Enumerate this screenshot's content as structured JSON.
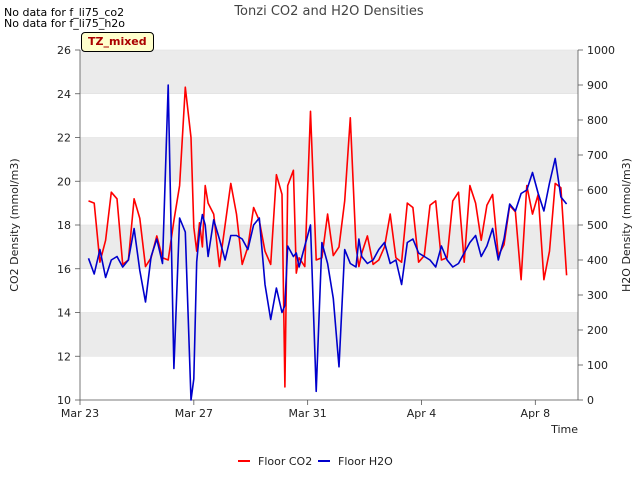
{
  "notes": [
    "No data for f_li75_co2",
    "No data for f_li75_h2o"
  ],
  "badge": "TZ_mixed",
  "chart_data": {
    "type": "line",
    "title": "Tonzi CO2 and H2O Densities",
    "xlabel": "Time",
    "ylabel": "CO2 Density (mmol/m3)",
    "y2label": "H2O Density (mmol/m3)",
    "x_range_days": [
      0,
      17.5
    ],
    "ylim": [
      10,
      26
    ],
    "y2lim": [
      0,
      1000
    ],
    "x_ticks": [
      {
        "day": 0,
        "label": "Mar 23"
      },
      {
        "day": 4,
        "label": "Mar 27"
      },
      {
        "day": 8,
        "label": "Mar 31"
      },
      {
        "day": 12,
        "label": "Apr 4"
      },
      {
        "day": 16,
        "label": "Apr 8"
      }
    ],
    "y_ticks": [
      10,
      12,
      14,
      16,
      18,
      20,
      22,
      24,
      26
    ],
    "y2_ticks": [
      0,
      100,
      200,
      300,
      400,
      500,
      600,
      700,
      800,
      900,
      1000
    ],
    "colors": {
      "co2": "#ff0000",
      "h2o": "#0000cc",
      "band": "#ebebeb",
      "grid": "#dddddd",
      "axis": "#555555"
    },
    "series": [
      {
        "name": "Floor CO2",
        "axis": "left",
        "x": [
          0.3,
          0.5,
          0.7,
          0.9,
          1.1,
          1.3,
          1.5,
          1.7,
          1.9,
          2.1,
          2.3,
          2.5,
          2.7,
          2.9,
          3.1,
          3.3,
          3.5,
          3.7,
          3.9,
          4.0,
          4.1,
          4.2,
          4.3,
          4.4,
          4.5,
          4.7,
          4.9,
          5.1,
          5.3,
          5.5,
          5.7,
          5.9,
          6.1,
          6.3,
          6.5,
          6.7,
          6.9,
          7.1,
          7.2,
          7.3,
          7.5,
          7.6,
          7.7,
          7.9,
          8.1,
          8.3,
          8.5,
          8.7,
          8.9,
          9.1,
          9.3,
          9.5,
          9.7,
          9.8,
          9.9,
          10.1,
          10.3,
          10.5,
          10.7,
          10.9,
          11.1,
          11.3,
          11.5,
          11.7,
          11.9,
          12.1,
          12.3,
          12.5,
          12.7,
          12.9,
          13.1,
          13.3,
          13.5,
          13.7,
          13.9,
          14.1,
          14.3,
          14.5,
          14.7,
          14.9,
          15.1,
          15.3,
          15.5,
          15.7,
          15.9,
          16.1,
          16.3,
          16.5,
          16.7,
          16.9,
          17.1
        ],
        "values": [
          19.1,
          19.0,
          16.3,
          17.3,
          19.5,
          19.2,
          16.2,
          16.4,
          19.2,
          18.3,
          16.1,
          16.5,
          17.5,
          16.5,
          16.4,
          18.2,
          19.8,
          24.3,
          22.0,
          17.9,
          16.8,
          18.1,
          17.0,
          19.8,
          19.0,
          18.5,
          16.1,
          18.0,
          19.9,
          18.5,
          16.2,
          17.0,
          18.8,
          18.2,
          16.8,
          16.2,
          20.3,
          19.4,
          10.6,
          19.8,
          20.5,
          15.8,
          16.5,
          16.1,
          23.2,
          16.4,
          16.5,
          18.5,
          16.6,
          17.0,
          19.1,
          22.9,
          17.0,
          16.1,
          16.7,
          17.5,
          16.2,
          16.4,
          17.0,
          18.5,
          16.5,
          16.3,
          19.0,
          18.8,
          16.3,
          16.6,
          18.9,
          19.1,
          16.4,
          16.5,
          19.1,
          19.5,
          16.3,
          19.8,
          19.0,
          17.3,
          18.9,
          19.4,
          16.6,
          17.1,
          18.9,
          18.6,
          15.5,
          19.8,
          18.5,
          19.4,
          15.5,
          16.8,
          19.9,
          19.7,
          15.7
        ]
      },
      {
        "name": "Floor H2O",
        "axis": "right",
        "x": [
          0.3,
          0.5,
          0.7,
          0.9,
          1.1,
          1.3,
          1.5,
          1.7,
          1.9,
          2.1,
          2.3,
          2.5,
          2.7,
          2.9,
          3.1,
          3.3,
          3.5,
          3.7,
          3.9,
          4.0,
          4.1,
          4.2,
          4.3,
          4.4,
          4.5,
          4.7,
          4.9,
          5.1,
          5.3,
          5.5,
          5.7,
          5.9,
          6.1,
          6.3,
          6.5,
          6.7,
          6.9,
          7.1,
          7.2,
          7.3,
          7.5,
          7.6,
          7.7,
          7.9,
          8.1,
          8.3,
          8.5,
          8.7,
          8.9,
          9.1,
          9.3,
          9.5,
          9.7,
          9.8,
          9.9,
          10.1,
          10.3,
          10.5,
          10.7,
          10.9,
          11.1,
          11.3,
          11.5,
          11.7,
          11.9,
          12.1,
          12.3,
          12.5,
          12.7,
          12.9,
          13.1,
          13.3,
          13.5,
          13.7,
          13.9,
          14.1,
          14.3,
          14.5,
          14.7,
          14.9,
          15.1,
          15.3,
          15.5,
          15.7,
          15.9,
          16.1,
          16.3,
          16.5,
          16.7,
          16.9,
          17.1
        ],
        "values": [
          405,
          360,
          430,
          350,
          400,
          410,
          380,
          400,
          490,
          370,
          280,
          410,
          460,
          390,
          900,
          90,
          520,
          480,
          0,
          60,
          395,
          480,
          530,
          500,
          410,
          515,
          460,
          400,
          470,
          470,
          460,
          430,
          500,
          520,
          330,
          230,
          320,
          250,
          270,
          440,
          410,
          420,
          380,
          440,
          500,
          25,
          450,
          390,
          290,
          95,
          430,
          390,
          380,
          460,
          410,
          390,
          400,
          430,
          450,
          390,
          400,
          330,
          450,
          460,
          420,
          410,
          400,
          380,
          440,
          400,
          380,
          390,
          420,
          450,
          470,
          410,
          440,
          490,
          400,
          460,
          560,
          540,
          590,
          600,
          650,
          590,
          540,
          620,
          690,
          580,
          560
        ]
      }
    ],
    "legend": [
      "Floor CO2",
      "Floor H2O"
    ],
    "legend_position": "bottom-center"
  }
}
